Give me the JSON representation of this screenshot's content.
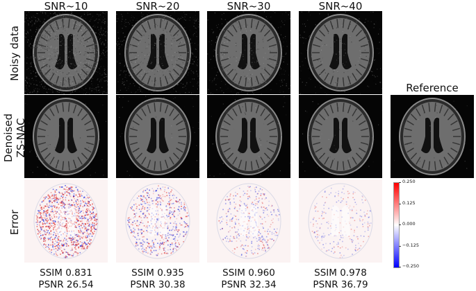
{
  "columns": [
    {
      "title": "SNR~10",
      "ssim": "SSIM 0.831",
      "psnr": "PSNR 26.54",
      "noise": 0.9,
      "err": 1.0
    },
    {
      "title": "SNR~20",
      "ssim": "SSIM 0.935",
      "psnr": "PSNR 30.38",
      "noise": 0.5,
      "err": 0.55
    },
    {
      "title": "SNR~30",
      "ssim": "SSIM 0.960",
      "psnr": "PSNR 32.34",
      "noise": 0.3,
      "err": 0.35
    },
    {
      "title": "SNR~40",
      "ssim": "SSIM 0.978",
      "psnr": "PSNR 36.79",
      "noise": 0.18,
      "err": 0.2
    }
  ],
  "rows": {
    "noisy": "Noisy data",
    "denoised_1": "Denoised",
    "denoised_2": "ZS-NAC",
    "error": "Error"
  },
  "reference_title": "Reference",
  "colorbar": {
    "ticks": [
      "0.250",
      "0.125",
      "0.000",
      "−0.125",
      "−0.250"
    ],
    "colors": {
      "top": "#ff0000",
      "mid": "#ffffff",
      "bottom": "#0000ff"
    }
  }
}
